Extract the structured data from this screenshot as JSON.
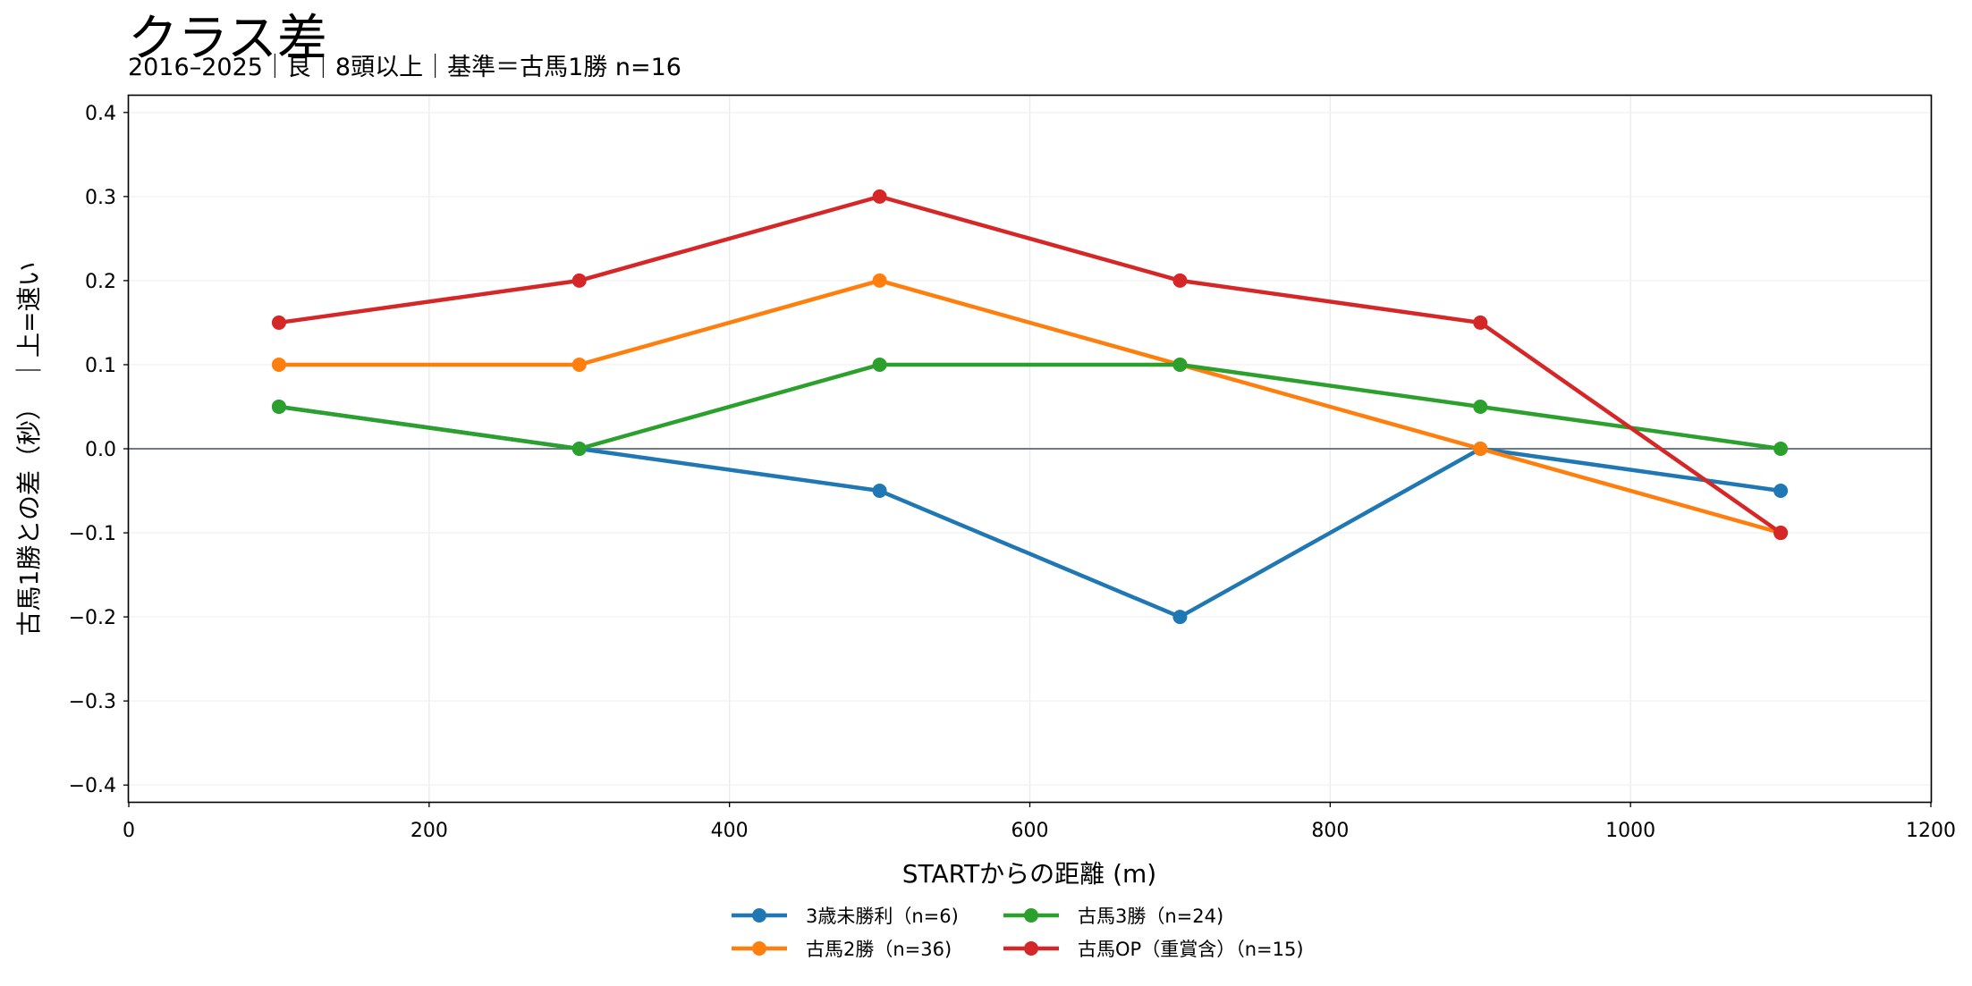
{
  "chart_data": {
    "type": "line",
    "title": "クラス差",
    "subtitle": "2016–2025｜良｜8頭以上｜基準＝古馬1勝 n=16",
    "xlabel": "STARTからの距離 (m)",
    "ylabel": "古馬1勝との差（秒）　｜上=速い",
    "xlim": [
      0,
      1200
    ],
    "ylim": [
      -0.42,
      0.42
    ],
    "xticks": [
      0,
      200,
      400,
      600,
      800,
      1000,
      1200
    ],
    "yticks": [
      -0.4,
      -0.3,
      -0.2,
      -0.1,
      0.0,
      0.1,
      0.2,
      0.3,
      0.4
    ],
    "ytick_labels": [
      "−0.4",
      "−0.3",
      "−0.2",
      "−0.1",
      "0.0",
      "0.1",
      "0.2",
      "0.3",
      "0.4"
    ],
    "grid": true,
    "reference_line": 0,
    "legend_position": "bottom-center",
    "x": [
      100,
      300,
      500,
      700,
      900,
      1100
    ],
    "series": [
      {
        "name": "3歳未勝利（n=6)",
        "color": "#1f77b4",
        "values": [
          0.05,
          0.0,
          -0.05,
          -0.2,
          0.0,
          -0.05
        ]
      },
      {
        "name": "古馬2勝（n=36)",
        "color": "#ff7f0e",
        "values": [
          0.1,
          0.1,
          0.2,
          0.1,
          0.0,
          -0.1
        ]
      },
      {
        "name": "古馬3勝（n=24)",
        "color": "#2ca02c",
        "values": [
          0.05,
          0.0,
          0.1,
          0.1,
          0.05,
          0.0
        ]
      },
      {
        "name": "古馬OP（重賞含）（n=15)",
        "color": "#d62728",
        "values": [
          0.15,
          0.2,
          0.3,
          0.2,
          0.15,
          -0.1
        ]
      }
    ]
  }
}
